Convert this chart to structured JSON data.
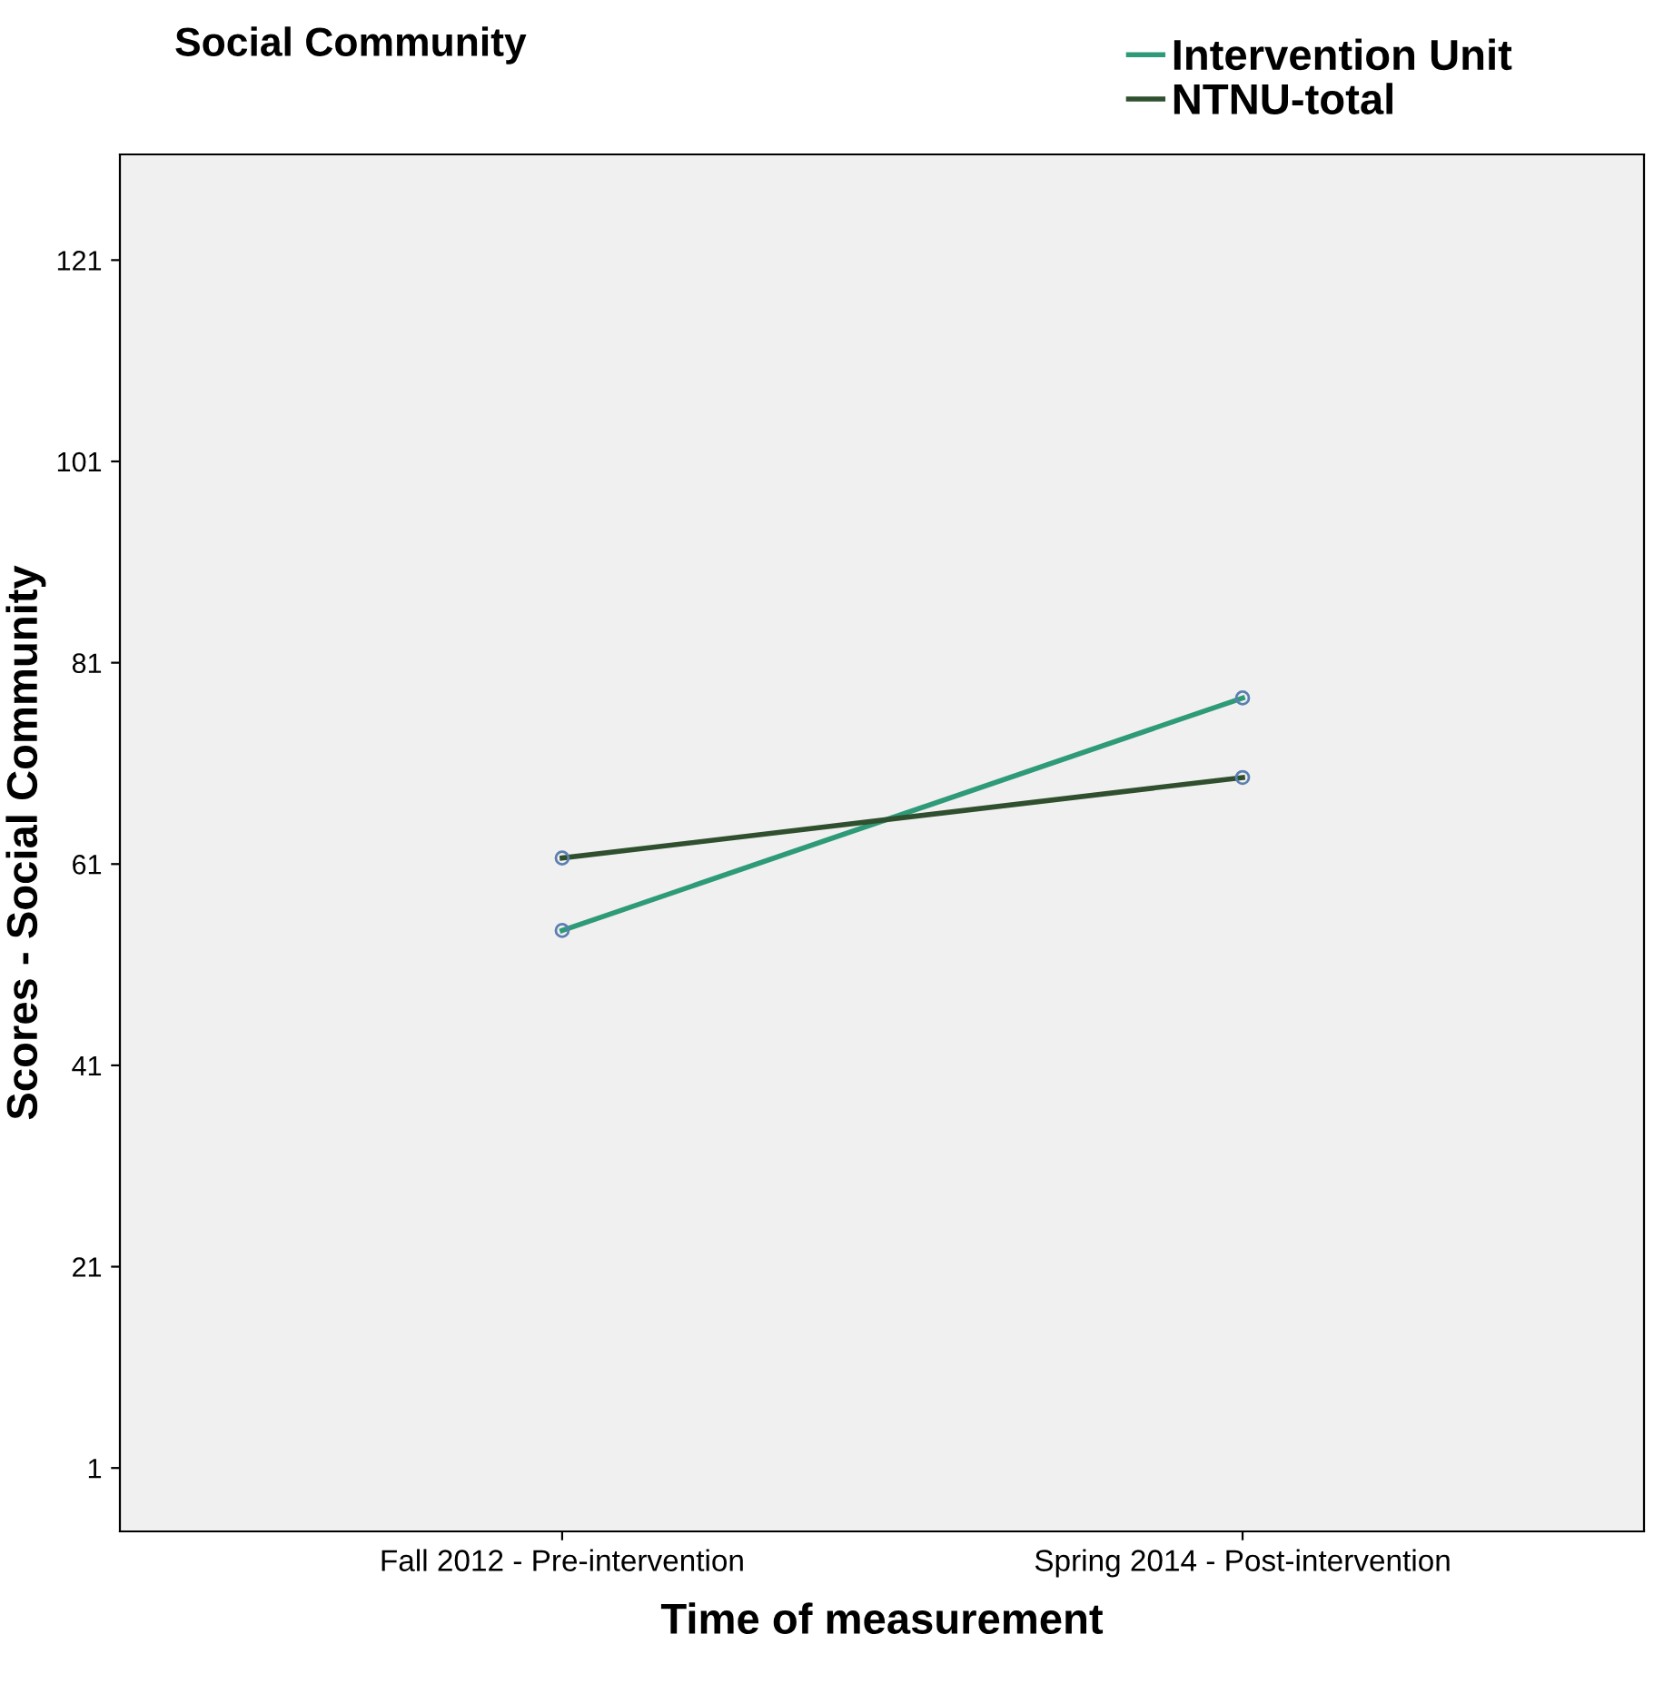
{
  "chart_data": {
    "type": "line",
    "title": "Social Community",
    "xlabel": "Time of measurement",
    "ylabel": "Scores - Social Community",
    "categories": [
      "Fall 2012 - Pre-intervention",
      "Spring 2014 - Post-intervention"
    ],
    "series": [
      {
        "name": "Intervention Unit",
        "color": "#2e9a78",
        "values": [
          54.4,
          77.5
        ]
      },
      {
        "name": "NTNU-total",
        "color": "#2f4f2f",
        "values": [
          61.6,
          69.6
        ]
      }
    ],
    "ylim": [
      -5.3,
      131.5
    ],
    "yticks": [
      1,
      21,
      41,
      61,
      81,
      101,
      121
    ],
    "grid": false,
    "legend": "top right",
    "marker": "circle",
    "line_style": "solid"
  }
}
